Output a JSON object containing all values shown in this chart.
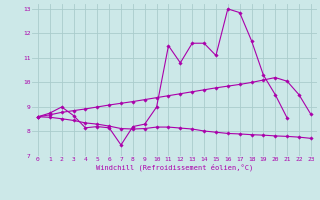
{
  "xlabel": "Windchill (Refroidissement éolien,°C)",
  "bg_color": "#cce8e8",
  "grid_color": "#aacccc",
  "line_color": "#aa00aa",
  "xlim": [
    -0.5,
    23.5
  ],
  "ylim": [
    7,
    13.2
  ],
  "xticks": [
    0,
    1,
    2,
    3,
    4,
    5,
    6,
    7,
    8,
    9,
    10,
    11,
    12,
    13,
    14,
    15,
    16,
    17,
    18,
    19,
    20,
    21,
    22,
    23
  ],
  "yticks": [
    7,
    8,
    9,
    10,
    11,
    12,
    13
  ],
  "series1_x": [
    0,
    1,
    2,
    3,
    4,
    5,
    6,
    7,
    8,
    9,
    10,
    11,
    12,
    13,
    14,
    15,
    16,
    17,
    18,
    19,
    20,
    21
  ],
  "series1_y": [
    8.6,
    8.75,
    9.0,
    8.65,
    8.15,
    8.2,
    8.15,
    7.45,
    8.2,
    8.3,
    9.0,
    11.5,
    10.8,
    11.6,
    11.6,
    11.1,
    13.0,
    12.85,
    11.7,
    10.3,
    9.5,
    8.55
  ],
  "series2_x": [
    0,
    1,
    2,
    3,
    4,
    5,
    6,
    7,
    8,
    9,
    10,
    11,
    12,
    13,
    14,
    15,
    16,
    17,
    18,
    19,
    20,
    21,
    22,
    23
  ],
  "series2_y": [
    8.6,
    8.68,
    8.78,
    8.85,
    8.92,
    9.0,
    9.08,
    9.15,
    9.22,
    9.3,
    9.38,
    9.46,
    9.54,
    9.62,
    9.7,
    9.78,
    9.85,
    9.92,
    10.0,
    10.1,
    10.2,
    10.05,
    9.5,
    8.7
  ],
  "series3_x": [
    0,
    1,
    2,
    3,
    4,
    5,
    6,
    7,
    8,
    9,
    10,
    11,
    12,
    13,
    14,
    15,
    16,
    17,
    18,
    19,
    20,
    21,
    22,
    23
  ],
  "series3_y": [
    8.6,
    8.58,
    8.52,
    8.45,
    8.35,
    8.3,
    8.22,
    8.12,
    8.1,
    8.12,
    8.18,
    8.18,
    8.14,
    8.1,
    8.02,
    7.97,
    7.92,
    7.9,
    7.87,
    7.85,
    7.82,
    7.8,
    7.77,
    7.72
  ]
}
